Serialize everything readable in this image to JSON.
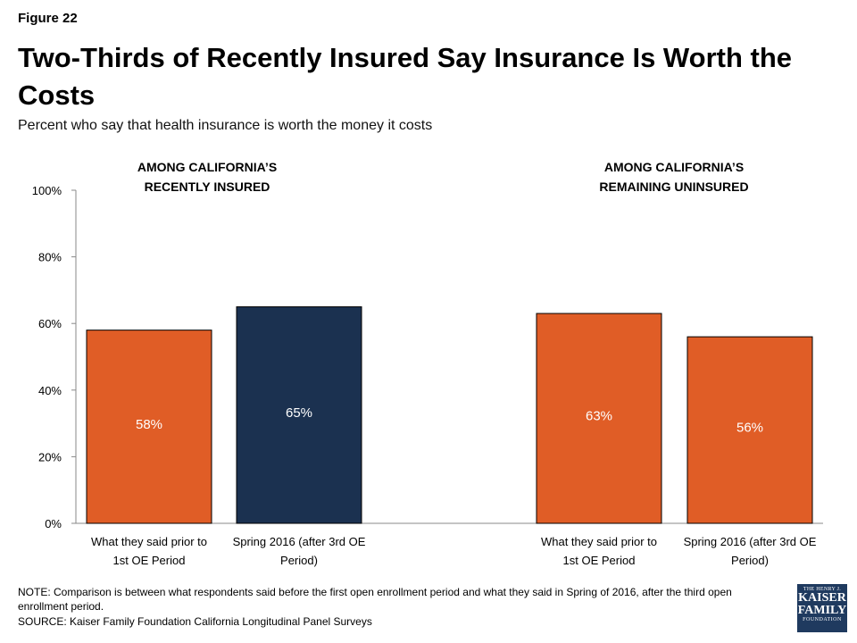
{
  "figure_label": "Figure 22",
  "title": "Two-Thirds of Recently Insured Say Insurance Is Worth the Costs",
  "subtitle": "Percent who say that health insurance is worth the money it costs",
  "note": "NOTE: Comparison is between what respondents said before the first open enrollment period and what they said in Spring of 2016, after the third open enrollment period.",
  "source": "SOURCE: Kaiser Family Foundation California Longitudinal Panel Surveys",
  "logo": {
    "line1": "THE HENRY J.",
    "line2": "KAISER",
    "line3": "FAMILY",
    "line4": "FOUNDATION"
  },
  "colors": {
    "orange": "#e05d26",
    "navy": "#1b3150",
    "axis": "#888888"
  },
  "chart_data": {
    "type": "bar",
    "ylim": [
      0,
      100
    ],
    "yticks": [
      "0%",
      "20%",
      "40%",
      "60%",
      "80%",
      "100%"
    ],
    "grid": false,
    "panels": [
      {
        "heading": [
          "AMONG CALIFORNIA’S",
          "RECENTLY INSURED"
        ],
        "bars": [
          {
            "category": [
              "What they said prior to",
              "1st OE Period"
            ],
            "value": 58,
            "label": "58%",
            "color": "#e05d26"
          },
          {
            "category": [
              "Spring 2016 (after 3rd OE",
              "Period)"
            ],
            "value": 65,
            "label": "65%",
            "color": "#1b3150"
          }
        ]
      },
      {
        "heading": [
          "AMONG CALIFORNIA’S",
          "REMAINING UNINSURED"
        ],
        "bars": [
          {
            "category": [
              "What they said prior to",
              "1st OE Period"
            ],
            "value": 63,
            "label": "63%",
            "color": "#e05d26"
          },
          {
            "category": [
              "Spring 2016 (after 3rd OE",
              "Period)"
            ],
            "value": 56,
            "label": "56%",
            "color": "#e05d26"
          }
        ]
      }
    ]
  }
}
